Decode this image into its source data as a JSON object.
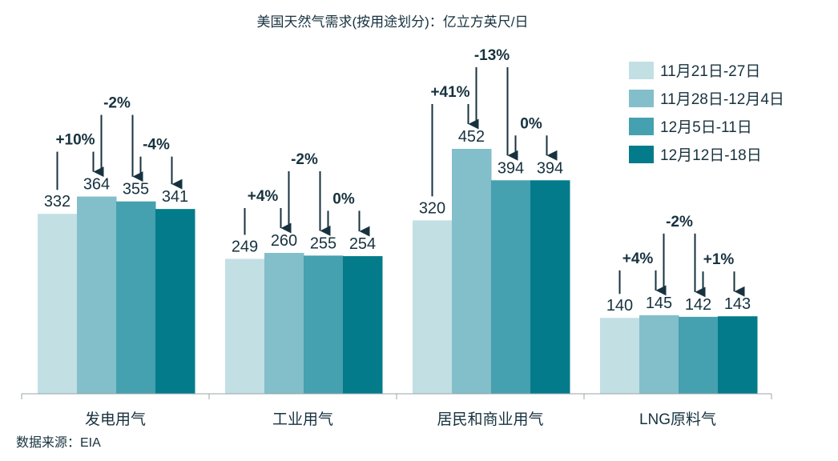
{
  "chart_data": {
    "type": "bar",
    "title": "美国天然气需求(按用途划分)：亿立方英尺/日",
    "categories": [
      "发电用气",
      "工业用气",
      "居民和商业用气",
      "LNG原料气"
    ],
    "series": [
      {
        "name": "11月21日-27日",
        "color": "#c2dfe4",
        "values": [
          332,
          249,
          320,
          140
        ]
      },
      {
        "name": "11月28日-12月4日",
        "color": "#82bfca",
        "values": [
          364,
          260,
          452,
          145
        ]
      },
      {
        "name": "12月5日-11日",
        "color": "#45a0af",
        "values": [
          355,
          255,
          394,
          142
        ]
      },
      {
        "name": "12月12日-18日",
        "color": "#037b8b",
        "values": [
          341,
          254,
          394,
          143
        ]
      }
    ],
    "changes": [
      [
        "+10%",
        "-2%",
        "-4%"
      ],
      [
        "+4%",
        "-2%",
        "0%"
      ],
      [
        "+41%",
        "-13%",
        "0%"
      ],
      [
        "+4%",
        "-2%",
        "+1%"
      ]
    ],
    "ylim": [
      0,
      726
    ],
    "grid": false,
    "legend": "top-right",
    "source": "数据来源：EIA"
  }
}
